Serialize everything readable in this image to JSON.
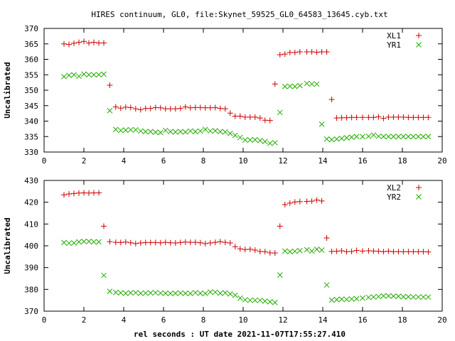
{
  "title": "HIRES continuum, GL0, file:Skynet_59525_GL0_64583_13645.cyb.txt",
  "xlabel": "rel seconds : UT date 2021-11-07T17:55:27.410",
  "colors": {
    "red": "#cc0000",
    "green": "#22aa00"
  },
  "chart_data": [
    {
      "type": "scatter",
      "ylabel": "Uncalibrated",
      "xlim": [
        0,
        20
      ],
      "ylim": [
        330,
        370
      ],
      "x_ticks": [
        "0",
        "2",
        "4",
        "6",
        "8",
        "10",
        "12",
        "14",
        "16",
        "18",
        "20"
      ],
      "y_ticks": [
        "330",
        "335",
        "340",
        "345",
        "350",
        "355",
        "360",
        "365",
        "370"
      ],
      "legend_position": "top-right",
      "series": [
        {
          "name": "XL1",
          "marker": "plus",
          "x": [
            1.0,
            1.25,
            1.5,
            1.75,
            2.0,
            2.25,
            2.5,
            2.75,
            3.0,
            3.3,
            3.6,
            3.85,
            4.1,
            4.35,
            4.6,
            4.85,
            5.1,
            5.35,
            5.6,
            5.85,
            6.1,
            6.35,
            6.6,
            6.85,
            7.1,
            7.35,
            7.6,
            7.85,
            8.1,
            8.35,
            8.6,
            8.85,
            9.1,
            9.35,
            9.6,
            9.85,
            10.1,
            10.35,
            10.6,
            10.85,
            11.1,
            11.35,
            11.6,
            11.85,
            12.1,
            12.35,
            12.6,
            12.85,
            13.2,
            13.45,
            13.7,
            13.95,
            14.2,
            14.45,
            14.7,
            14.95,
            15.2,
            15.45,
            15.7,
            16.0,
            16.3,
            16.55,
            16.8,
            17.05,
            17.3,
            17.55,
            17.8,
            18.05,
            18.3,
            18.55,
            18.8,
            19.05,
            19.3
          ],
          "values": [
            365.0,
            364.8,
            365.2,
            365.5,
            365.8,
            365.3,
            365.5,
            365.3,
            365.3,
            351.6,
            344.6,
            344.2,
            344.5,
            344.4,
            344.0,
            343.7,
            344.1,
            344.1,
            344.4,
            344.3,
            344.0,
            344.0,
            344.0,
            344.1,
            344.6,
            344.3,
            344.4,
            344.4,
            344.3,
            344.3,
            344.4,
            344.1,
            344.0,
            342.6,
            341.6,
            341.6,
            341.3,
            341.3,
            341.3,
            341.0,
            340.3,
            340.2,
            352.0,
            361.5,
            361.7,
            362.2,
            362.2,
            362.4,
            362.4,
            362.4,
            362.3,
            362.4,
            362.4,
            347.0,
            341.0,
            341.1,
            341.1,
            341.2,
            341.2,
            341.2,
            341.2,
            341.2,
            341.4,
            340.9,
            341.3,
            341.3,
            341.3,
            341.3,
            341.2,
            341.2,
            341.2,
            341.2,
            341.2
          ]
        },
        {
          "name": "YR1",
          "marker": "cross",
          "x": [
            1.0,
            1.25,
            1.5,
            1.75,
            2.0,
            2.25,
            2.5,
            2.75,
            3.0,
            3.3,
            3.6,
            3.85,
            4.1,
            4.35,
            4.6,
            4.85,
            5.1,
            5.35,
            5.6,
            5.85,
            6.1,
            6.35,
            6.6,
            6.85,
            7.1,
            7.35,
            7.6,
            7.85,
            8.1,
            8.35,
            8.6,
            8.85,
            9.1,
            9.35,
            9.6,
            9.85,
            10.1,
            10.35,
            10.6,
            10.85,
            11.1,
            11.35,
            11.6,
            11.85,
            12.1,
            12.35,
            12.6,
            12.85,
            13.2,
            13.45,
            13.7,
            13.95,
            14.2,
            14.45,
            14.7,
            14.95,
            15.2,
            15.45,
            15.7,
            16.0,
            16.3,
            16.55,
            16.8,
            17.05,
            17.3,
            17.55,
            17.8,
            18.05,
            18.3,
            18.55,
            18.8,
            19.05,
            19.3
          ],
          "values": [
            354.4,
            354.8,
            355.0,
            354.5,
            355.2,
            355.0,
            355.0,
            355.0,
            355.2,
            343.4,
            337.3,
            337.0,
            337.1,
            337.2,
            337.2,
            336.8,
            336.6,
            336.6,
            336.4,
            336.3,
            337.0,
            336.6,
            336.5,
            336.6,
            336.5,
            336.8,
            336.6,
            336.8,
            337.3,
            336.8,
            336.9,
            336.6,
            336.5,
            336.0,
            335.4,
            334.7,
            333.9,
            333.9,
            334.0,
            333.7,
            333.4,
            332.8,
            333.0,
            342.8,
            351.2,
            351.3,
            351.2,
            351.5,
            352.2,
            352.0,
            352.0,
            339.0,
            334.2,
            334.0,
            334.2,
            334.4,
            334.6,
            334.8,
            335.0,
            335.0,
            335.1,
            335.5,
            335.1,
            335.0,
            335.0,
            335.0,
            335.0,
            335.0,
            335.0,
            335.0,
            335.0,
            335.0,
            335.0
          ]
        }
      ]
    },
    {
      "type": "scatter",
      "ylabel": "Uncalibrated",
      "xlim": [
        0,
        20
      ],
      "ylim": [
        370,
        430
      ],
      "x_ticks": [
        "0",
        "2",
        "4",
        "6",
        "8",
        "10",
        "12",
        "14",
        "16",
        "18",
        "20"
      ],
      "y_ticks": [
        "370",
        "380",
        "390",
        "400",
        "410",
        "420",
        "430"
      ],
      "legend_position": "top-right",
      "series": [
        {
          "name": "XL2",
          "marker": "plus",
          "x": [
            1.0,
            1.25,
            1.5,
            1.75,
            2.0,
            2.25,
            2.5,
            2.75,
            3.0,
            3.3,
            3.6,
            3.85,
            4.1,
            4.35,
            4.6,
            4.85,
            5.1,
            5.35,
            5.6,
            5.85,
            6.1,
            6.35,
            6.6,
            6.85,
            7.1,
            7.35,
            7.6,
            7.85,
            8.1,
            8.35,
            8.6,
            8.85,
            9.1,
            9.35,
            9.6,
            9.85,
            10.1,
            10.35,
            10.6,
            10.85,
            11.1,
            11.35,
            11.6,
            11.85,
            12.1,
            12.35,
            12.6,
            12.85,
            13.2,
            13.45,
            13.7,
            13.95,
            14.2,
            14.45,
            14.7,
            14.95,
            15.2,
            15.45,
            15.7,
            16.0,
            16.3,
            16.55,
            16.8,
            17.05,
            17.3,
            17.55,
            17.8,
            18.05,
            18.3,
            18.55,
            18.8,
            19.05,
            19.3
          ],
          "values": [
            423.4,
            423.8,
            424.0,
            424.2,
            424.3,
            424.2,
            424.3,
            424.3,
            409.0,
            401.9,
            401.6,
            401.5,
            401.7,
            401.4,
            401.0,
            401.3,
            401.5,
            401.5,
            401.5,
            401.4,
            401.6,
            401.4,
            401.3,
            401.5,
            401.7,
            401.6,
            401.6,
            401.4,
            401.0,
            401.3,
            401.6,
            401.9,
            401.6,
            401.3,
            399.6,
            398.6,
            398.3,
            398.4,
            398.0,
            397.4,
            397.3,
            396.8,
            396.7,
            409.0,
            418.9,
            419.6,
            420.1,
            420.3,
            420.4,
            420.5,
            421.0,
            420.6,
            403.6,
            397.4,
            397.5,
            397.7,
            397.3,
            397.4,
            397.9,
            397.6,
            397.7,
            397.6,
            397.5,
            397.3,
            397.5,
            397.3,
            397.3,
            397.3,
            397.3,
            397.3,
            397.3,
            397.3,
            397.2
          ]
        },
        {
          "name": "YR2",
          "marker": "cross",
          "x": [
            1.0,
            1.25,
            1.5,
            1.75,
            2.0,
            2.25,
            2.5,
            2.75,
            3.0,
            3.3,
            3.6,
            3.85,
            4.1,
            4.35,
            4.6,
            4.85,
            5.1,
            5.35,
            5.6,
            5.85,
            6.1,
            6.35,
            6.6,
            6.85,
            7.1,
            7.35,
            7.6,
            7.85,
            8.1,
            8.35,
            8.6,
            8.85,
            9.1,
            9.35,
            9.6,
            9.85,
            10.1,
            10.35,
            10.6,
            10.85,
            11.1,
            11.35,
            11.6,
            11.85,
            12.1,
            12.35,
            12.6,
            12.85,
            13.2,
            13.45,
            13.7,
            13.95,
            14.2,
            14.45,
            14.7,
            14.95,
            15.2,
            15.45,
            15.7,
            16.0,
            16.3,
            16.55,
            16.8,
            17.05,
            17.3,
            17.55,
            17.8,
            18.05,
            18.3,
            18.55,
            18.8,
            19.05,
            19.3
          ],
          "values": [
            401.5,
            401.2,
            401.3,
            401.8,
            402.0,
            402.0,
            401.8,
            401.8,
            386.4,
            379.1,
            378.6,
            378.4,
            378.2,
            378.4,
            378.5,
            378.2,
            378.3,
            378.4,
            378.5,
            378.3,
            378.2,
            378.1,
            378.2,
            378.3,
            378.2,
            378.1,
            378.5,
            378.2,
            378.1,
            378.8,
            378.7,
            378.2,
            378.4,
            377.9,
            377.3,
            376.0,
            375.2,
            375.0,
            375.0,
            375.0,
            374.6,
            374.3,
            374.0,
            386.6,
            397.6,
            397.3,
            397.5,
            397.8,
            398.2,
            397.6,
            398.4,
            398.0,
            382.0,
            375.1,
            375.3,
            375.5,
            375.4,
            375.6,
            375.7,
            376.0,
            376.3,
            376.5,
            376.7,
            377.0,
            377.0,
            376.9,
            376.8,
            376.6,
            376.6,
            376.5,
            376.5,
            376.5,
            376.5
          ]
        }
      ]
    }
  ]
}
